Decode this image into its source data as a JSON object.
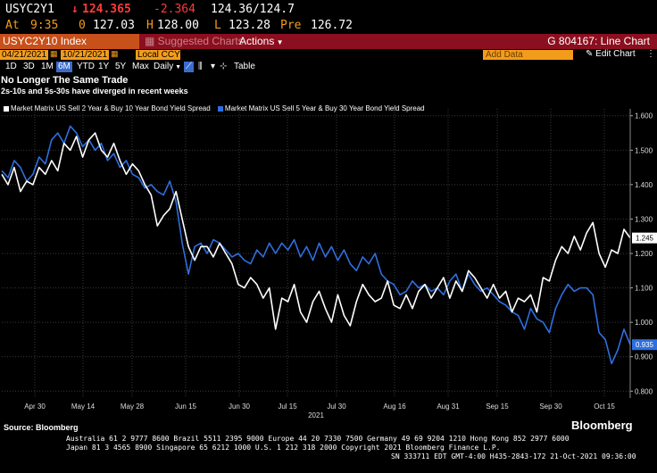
{
  "quote": {
    "ticker": "USYC2Y1",
    "arrow": "↓",
    "last": "124.365",
    "change": "-2.364",
    "bid_ask": "124.36/124.7",
    "at_label": "At",
    "time": "9:35",
    "size": "0",
    "open": "127.03",
    "high_label": "H",
    "high": "128.00",
    "low_label": "L",
    "low": "123.28",
    "pre_label": "Pre",
    "pre": "126.72"
  },
  "toolbar": {
    "security": "USYC2Y10 Index",
    "suggested_charts": "Suggested Charts",
    "actions": "Actions",
    "function": "G 804167: Line Chart",
    "start_date": "04/21/2021",
    "end_date": "10/21/2021",
    "currency": "Local CCY",
    "add_data_placeholder": "Add Data",
    "edit_chart": "Edit Chart",
    "ranges": [
      "1D",
      "3D",
      "1M",
      "6M",
      "YTD",
      "1Y",
      "5Y",
      "Max"
    ],
    "selected_range": "6M",
    "period": "Daily",
    "table": "Table"
  },
  "source": "Source: Bloomberg",
  "brand": "Bloomberg",
  "footer": {
    "line1": "Australia 61 2 9777 8600 Brazil 5511 2395 9000 Europe 44 20 7330 7500 Germany 49 69 9204 1210 Hong Kong 852 2977 6000",
    "line2": "Japan 81 3 4565 8900         Singapore 65 6212 1000         U.S. 1 212 318 2000         Copyright 2021 Bloomberg Finance L.P.",
    "line3": "SN 333711 EDT  GMT-4:00 H435-2843-172 21-Oct-2021 09:36:00"
  },
  "colors": {
    "series1": "#ffffff",
    "series2": "#2e6fe0",
    "grid": "#3a3a3a",
    "title_bar": "#8b0f1e",
    "orange": "#f39c1a"
  },
  "chart_data": {
    "type": "line",
    "title": "No Longer The Same Trade",
    "subtitle": "2s-10s and 5s-30s have diverged in recent weeks",
    "xlabel": "2021",
    "x_ticks": [
      "Apr 30",
      "May 14",
      "May 28",
      "Jun 15",
      "Jun 30",
      "Jul 15",
      "Jul 30",
      "Aug 16",
      "Aug 31",
      "Sep 15",
      "Sep 30",
      "Oct 15"
    ],
    "ylim": [
      0.78,
      1.62
    ],
    "y_ticks": [
      "1.600",
      "1.500",
      "1.400",
      "1.300",
      "1.200",
      "1.100",
      "1.000",
      "0.900",
      "0.800"
    ],
    "series": [
      {
        "name": "Market Matrix US Sell 2 Year & Buy 10 Year Bond Yield Spread",
        "last_label": "1.245",
        "values": [
          1.43,
          1.4,
          1.45,
          1.38,
          1.41,
          1.4,
          1.45,
          1.43,
          1.47,
          1.44,
          1.52,
          1.5,
          1.54,
          1.48,
          1.53,
          1.55,
          1.5,
          1.48,
          1.52,
          1.47,
          1.43,
          1.46,
          1.44,
          1.4,
          1.37,
          1.28,
          1.31,
          1.33,
          1.38,
          1.3,
          1.22,
          1.18,
          1.22,
          1.22,
          1.19,
          1.23,
          1.2,
          1.17,
          1.11,
          1.1,
          1.13,
          1.11,
          1.07,
          1.1,
          0.98,
          1.07,
          1.06,
          1.11,
          1.03,
          1.0,
          1.06,
          1.09,
          1.04,
          1.0,
          1.08,
          1.02,
          0.99,
          1.06,
          1.11,
          1.08,
          1.06,
          1.07,
          1.12,
          1.05,
          1.04,
          1.08,
          1.04,
          1.09,
          1.11,
          1.07,
          1.1,
          1.13,
          1.07,
          1.12,
          1.09,
          1.15,
          1.13,
          1.1,
          1.07,
          1.11,
          1.07,
          1.09,
          1.03,
          1.07,
          1.06,
          1.08,
          1.03,
          1.13,
          1.12,
          1.18,
          1.22,
          1.2,
          1.25,
          1.21,
          1.26,
          1.29,
          1.2,
          1.16,
          1.21,
          1.2,
          1.27,
          1.245
        ]
      },
      {
        "name": "Market Matrix US Sell 5 Year & Buy 30 Year Bond Yield Spread",
        "last_label": "0.935",
        "values": [
          1.44,
          1.42,
          1.47,
          1.45,
          1.41,
          1.43,
          1.48,
          1.46,
          1.53,
          1.55,
          1.52,
          1.57,
          1.55,
          1.51,
          1.53,
          1.5,
          1.52,
          1.47,
          1.49,
          1.45,
          1.47,
          1.43,
          1.42,
          1.39,
          1.4,
          1.38,
          1.37,
          1.41,
          1.35,
          1.23,
          1.14,
          1.22,
          1.23,
          1.2,
          1.24,
          1.23,
          1.21,
          1.19,
          1.2,
          1.18,
          1.17,
          1.21,
          1.19,
          1.23,
          1.2,
          1.23,
          1.21,
          1.24,
          1.19,
          1.22,
          1.18,
          1.23,
          1.19,
          1.22,
          1.18,
          1.21,
          1.17,
          1.15,
          1.19,
          1.17,
          1.2,
          1.14,
          1.12,
          1.11,
          1.08,
          1.09,
          1.12,
          1.1,
          1.11,
          1.09,
          1.1,
          1.08,
          1.12,
          1.14,
          1.09,
          1.14,
          1.11,
          1.09,
          1.1,
          1.08,
          1.06,
          1.05,
          1.03,
          1.02,
          0.98,
          1.04,
          1.01,
          1.0,
          0.97,
          1.04,
          1.08,
          1.11,
          1.09,
          1.1,
          1.1,
          1.08,
          0.97,
          0.95,
          0.88,
          0.92,
          0.98,
          0.935
        ]
      }
    ]
  }
}
